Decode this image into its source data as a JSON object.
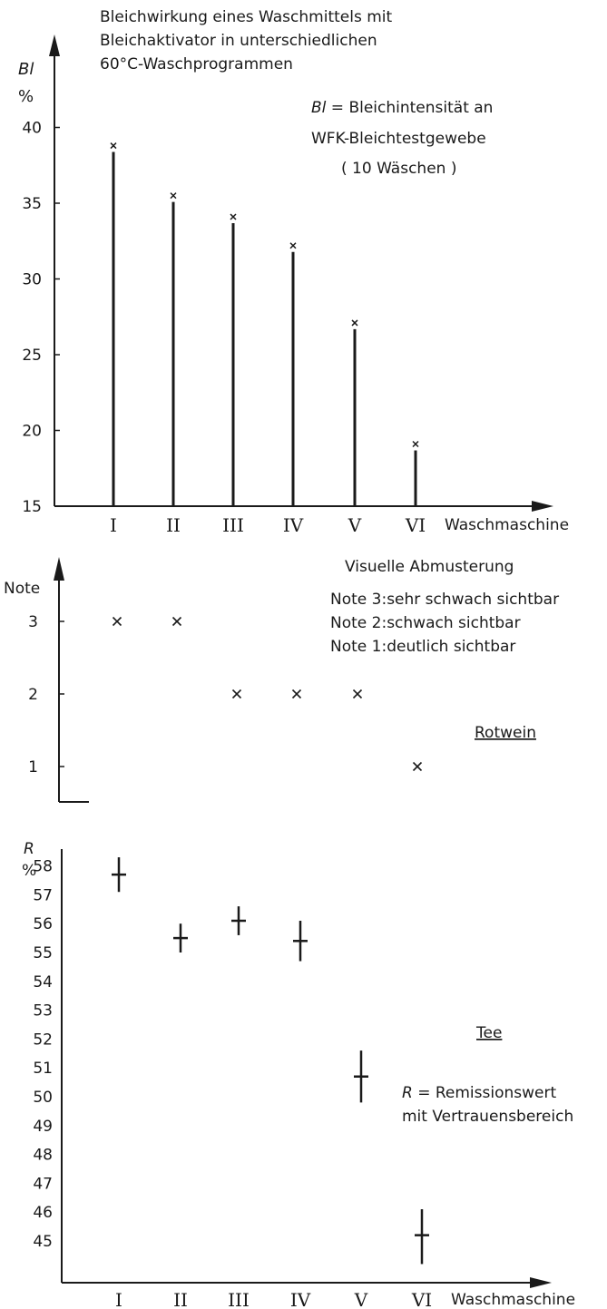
{
  "chart_data": [
    {
      "type": "bar",
      "title_lines": [
        "Bleichwirkung eines Waschmittels mit",
        "Bleichaktivator in unterschiedlichen",
        "60°C-Waschprogrammen"
      ],
      "ylabel_symbol": "Bl",
      "ylabel_unit": "%",
      "xlabel": "Waschmaschine",
      "categories": [
        "I",
        "II",
        "III",
        "IV",
        "V",
        "VI"
      ],
      "values": [
        38.8,
        35.5,
        34.1,
        32.2,
        27.1,
        19.1
      ],
      "yticks": [
        "15",
        "20",
        "25",
        "30",
        "35",
        "40"
      ],
      "ylim": [
        15,
        41
      ],
      "legend_symbol": "Bl",
      "legend_lines": [
        " = Bleichintensität an",
        "WFK-Bleichtestgewebe",
        "( 10 Wäschen )"
      ]
    },
    {
      "type": "scatter",
      "ylabel": "Note",
      "categories": [
        "I",
        "II",
        "III",
        "IV",
        "V",
        "VI"
      ],
      "values": [
        3,
        3,
        2,
        2,
        2,
        1
      ],
      "yticks": [
        "1",
        "2",
        "3"
      ],
      "legend_title": "Visuelle Abmusterung",
      "legend_lines": [
        "Note 3:sehr schwach sichtbar",
        "Note 2:schwach sichtbar",
        "Note 1:deutlich sichtbar"
      ],
      "series_label": "Rotwein"
    },
    {
      "type": "scatter",
      "ylabel_symbol": "R",
      "ylabel_unit": "%",
      "xlabel": "Waschmaschine",
      "categories": [
        "I",
        "II",
        "III",
        "IV",
        "V",
        "VI"
      ],
      "values": [
        57.7,
        55.5,
        56.1,
        55.4,
        50.7,
        45.2
      ],
      "ci_low": [
        57.1,
        55.0,
        55.6,
        54.7,
        49.8,
        44.2
      ],
      "ci_high": [
        58.3,
        56.0,
        56.6,
        56.1,
        51.6,
        46.1
      ],
      "yticks": [
        "45",
        "46",
        "47",
        "48",
        "49",
        "50",
        "51",
        "52",
        "53",
        "54",
        "55",
        "56",
        "57",
        "58"
      ],
      "series_label": "Tee",
      "legend_symbol": "R",
      "legend_lines": [
        " = Remissionswert",
        "mit Vertrauensbereich"
      ]
    }
  ]
}
